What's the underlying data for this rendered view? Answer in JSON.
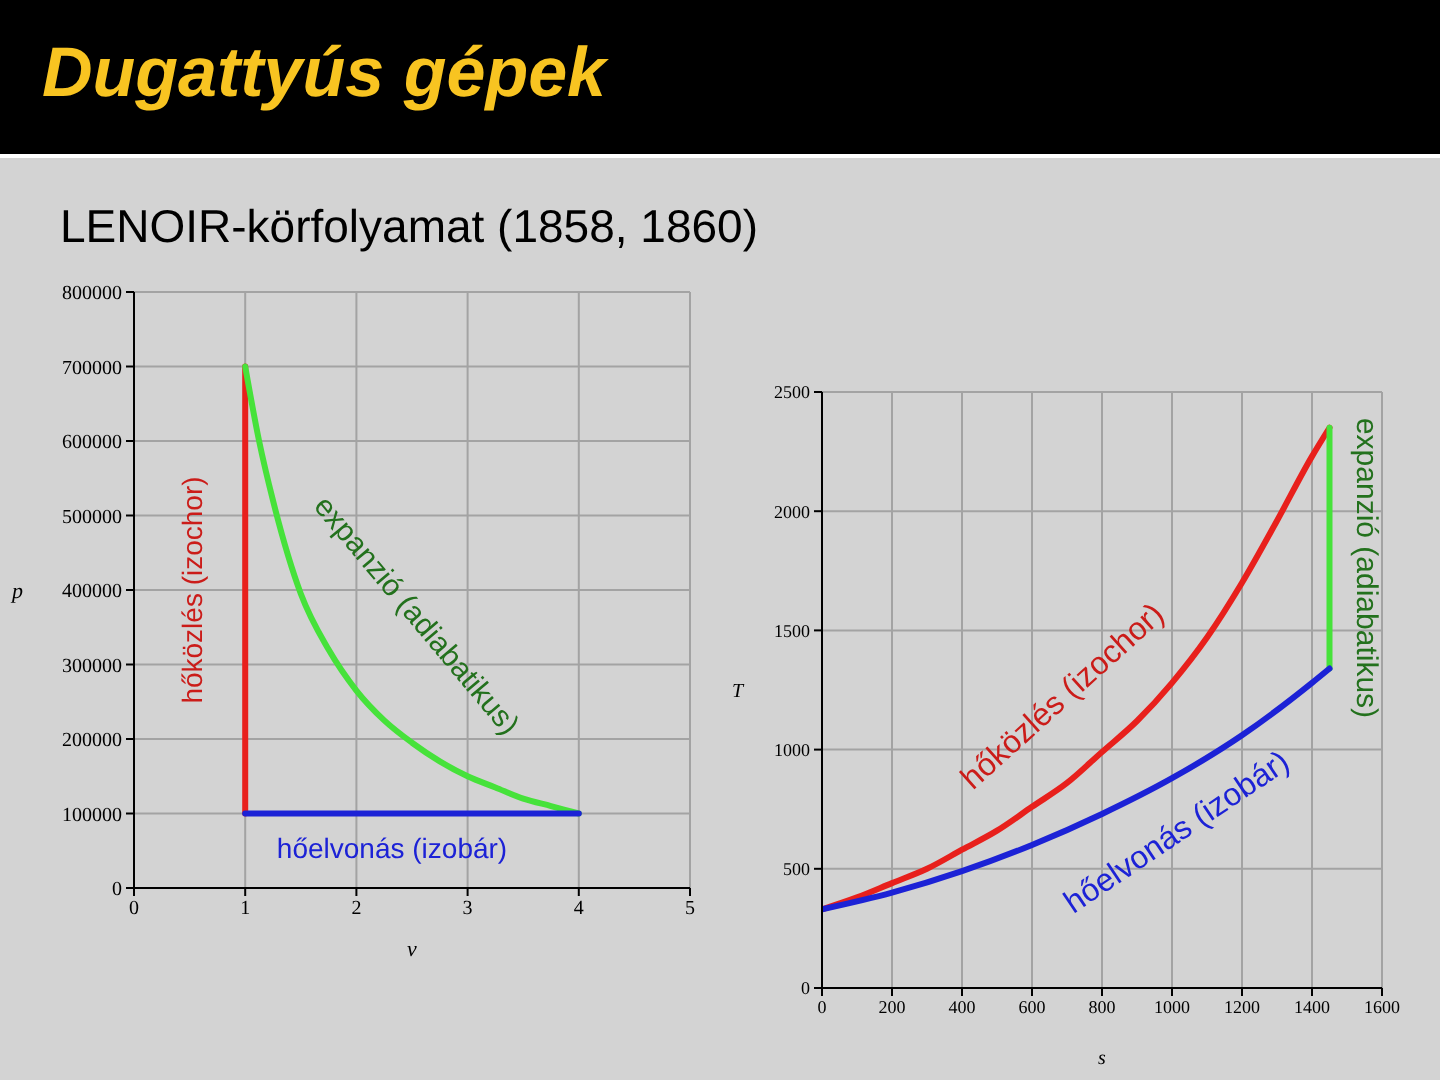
{
  "chart_data": [
    {
      "type": "line",
      "title": "Dugattyús gépek",
      "subtitle": "LENOIR-körfolyamat (1858, 1860)",
      "xlabel": "v",
      "ylabel": "p",
      "xlim": [
        0,
        5
      ],
      "ylim": [
        0,
        800000
      ],
      "xticks": [
        0,
        1,
        2,
        3,
        4,
        5
      ],
      "yticks": [
        0,
        100000,
        200000,
        300000,
        400000,
        500000,
        600000,
        700000,
        800000
      ],
      "grid": true,
      "marker": "none",
      "line_style": "solid",
      "series": [
        {
          "name": "hőközlés (izochor)",
          "color": "#e8201c",
          "x": [
            1,
            1
          ],
          "values": [
            100000,
            700000
          ]
        },
        {
          "name": "expanzió (adiabatikus)",
          "color": "#46e23a",
          "x": [
            1,
            1.125,
            1.25,
            1.5,
            1.75,
            2,
            2.25,
            2.5,
            2.75,
            3,
            3.25,
            3.5,
            3.75,
            4
          ],
          "values": [
            700000,
            600000,
            520000,
            395000,
            320000,
            265000,
            225000,
            195000,
            170000,
            150000,
            135000,
            120000,
            110000,
            100000
          ]
        },
        {
          "name": "hőelvonás (izobár)",
          "color": "#1c22d6",
          "x": [
            1,
            4
          ],
          "values": [
            100000,
            100000
          ]
        }
      ]
    },
    {
      "type": "line",
      "xlabel": "s",
      "ylabel": "T",
      "xlim": [
        0,
        1600
      ],
      "ylim": [
        0,
        2500
      ],
      "xticks": [
        0,
        200,
        400,
        600,
        800,
        1000,
        1200,
        1400,
        1600
      ],
      "yticks": [
        0,
        500,
        1000,
        1500,
        2000,
        2500
      ],
      "grid": true,
      "marker": "none",
      "line_style": "solid",
      "series": [
        {
          "name": "hőközlés (izochor)",
          "color": "#e8201c",
          "x": [
            0,
            100,
            200,
            300,
            400,
            500,
            600,
            700,
            800,
            900,
            1000,
            1100,
            1200,
            1300,
            1400,
            1450
          ],
          "values": [
            330,
            380,
            440,
            500,
            580,
            660,
            760,
            860,
            990,
            1120,
            1280,
            1470,
            1700,
            1960,
            2230,
            2350
          ]
        },
        {
          "name": "expanzió (adiabatikus)",
          "color": "#46e23a",
          "x": [
            1450,
            1450
          ],
          "values": [
            2350,
            1340
          ]
        },
        {
          "name": "hőelvonás (izobár)",
          "color": "#1c22d6",
          "x": [
            0,
            200,
            400,
            600,
            800,
            1000,
            1200,
            1400,
            1450
          ],
          "values": [
            330,
            400,
            490,
            600,
            730,
            880,
            1060,
            1280,
            1340
          ]
        }
      ]
    }
  ]
}
